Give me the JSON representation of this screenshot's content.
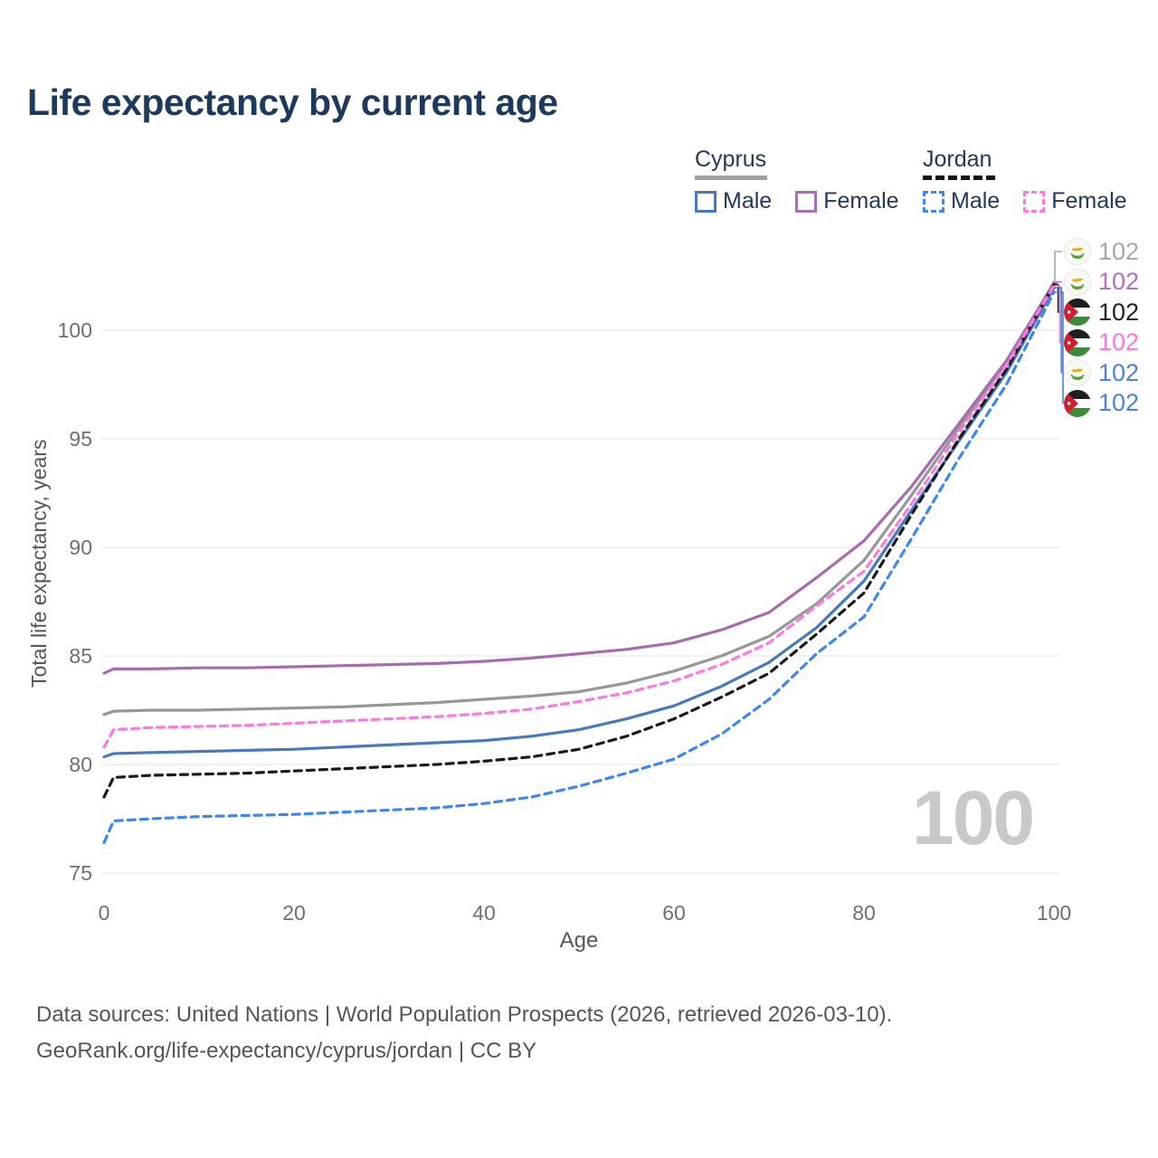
{
  "title": "Life expectancy by current age",
  "legend": {
    "groups": [
      {
        "label": "Cyprus",
        "underline_style": "solid",
        "underline_color": "#a0a0a0",
        "items": [
          {
            "label": "Male",
            "color": "#4878bd",
            "dash": false
          },
          {
            "label": "Female",
            "color": "#a96fb0",
            "dash": false
          }
        ]
      },
      {
        "label": "Jordan",
        "underline_style": "dashed",
        "underline_color": "#141414",
        "items": [
          {
            "label": "Male",
            "color": "#3f87f0",
            "dash": true
          },
          {
            "label": "Female",
            "color": "#fc7ade",
            "dash": true
          }
        ]
      }
    ]
  },
  "axes": {
    "x": {
      "label": "Age",
      "ticks": [
        0,
        20,
        40,
        60,
        80,
        100
      ]
    },
    "y": {
      "label": "Total life expectancy, years",
      "ticks": [
        75,
        80,
        85,
        90,
        95,
        100
      ]
    }
  },
  "chart_data": {
    "type": "line",
    "title": "Life expectancy by current age",
    "xlabel": "Age",
    "ylabel": "Total life expectancy, years",
    "xlim": [
      0,
      100
    ],
    "ylim": [
      75,
      100
    ],
    "grid": "horizontal-only",
    "x": [
      0,
      1,
      5,
      10,
      15,
      20,
      25,
      30,
      35,
      40,
      45,
      50,
      55,
      60,
      65,
      70,
      75,
      80,
      85,
      90,
      95,
      100
    ],
    "series": [
      {
        "id": "cyprus-total",
        "name": "Cyprus",
        "color": "#979797",
        "dash": false,
        "values": [
          82.3,
          82.45,
          82.5,
          82.5,
          82.55,
          82.6,
          82.65,
          82.75,
          82.85,
          83.0,
          83.15,
          83.35,
          83.75,
          84.3,
          85.0,
          85.9,
          87.4,
          89.4,
          92.4,
          95.5,
          98.5,
          102.2
        ]
      },
      {
        "id": "cyprus-female",
        "name": "Cyprus Female",
        "color": "#a76cae",
        "dash": false,
        "values": [
          84.2,
          84.4,
          84.4,
          84.45,
          84.45,
          84.5,
          84.55,
          84.6,
          84.65,
          84.75,
          84.9,
          85.1,
          85.3,
          85.6,
          86.2,
          87.0,
          88.6,
          90.3,
          92.8,
          95.7,
          98.6,
          102.15
        ]
      },
      {
        "id": "cyprus-male",
        "name": "Cyprus Male",
        "color": "#4878bd",
        "dash": false,
        "values": [
          80.35,
          80.5,
          80.55,
          80.6,
          80.65,
          80.7,
          80.8,
          80.9,
          81.0,
          81.1,
          81.3,
          81.6,
          82.1,
          82.7,
          83.6,
          84.7,
          86.3,
          88.45,
          91.7,
          94.9,
          98.05,
          101.95
        ]
      },
      {
        "id": "jordan-total",
        "name": "Jordan",
        "color": "#1a1a1a",
        "dash": true,
        "values": [
          78.5,
          79.4,
          79.5,
          79.55,
          79.6,
          79.7,
          79.8,
          79.9,
          80.0,
          80.15,
          80.35,
          80.7,
          81.3,
          82.1,
          83.1,
          84.2,
          86.0,
          87.9,
          91.5,
          95.0,
          98.2,
          102.1
        ]
      },
      {
        "id": "jordan-female",
        "name": "Jordan Female",
        "color": "#fc7ade",
        "dash": true,
        "values": [
          80.8,
          81.6,
          81.7,
          81.75,
          81.8,
          81.9,
          82.0,
          82.1,
          82.2,
          82.35,
          82.55,
          82.9,
          83.3,
          83.85,
          84.6,
          85.6,
          87.3,
          88.9,
          92.0,
          95.3,
          98.4,
          102.05
        ]
      },
      {
        "id": "jordan-male",
        "name": "Jordan Male",
        "color": "#3f87f0",
        "dash": true,
        "values": [
          76.4,
          77.4,
          77.5,
          77.6,
          77.65,
          77.7,
          77.8,
          77.9,
          78.0,
          78.2,
          78.5,
          79.0,
          79.6,
          80.25,
          81.4,
          83.0,
          85.1,
          86.8,
          90.4,
          94.1,
          97.5,
          101.75
        ]
      }
    ]
  },
  "endpoint_labels": [
    {
      "series_id": "cyprus-total",
      "icon": "cyprus-flag-icon",
      "value": "102",
      "color": "#a8a8a8"
    },
    {
      "series_id": "cyprus-female",
      "icon": "cyprus-flag-icon",
      "value": "102",
      "color": "#b470b8"
    },
    {
      "series_id": "jordan-total",
      "icon": "jordan-flag-icon",
      "value": "102",
      "color": "#1f1f1f"
    },
    {
      "series_id": "jordan-female",
      "icon": "jordan-flag-icon",
      "value": "102",
      "color": "#ff77dd"
    },
    {
      "series_id": "cyprus-male",
      "icon": "cyprus-flag-icon",
      "value": "102",
      "color": "#4d82d6"
    },
    {
      "series_id": "jordan-male",
      "icon": "jordan-flag-icon",
      "value": "102",
      "color": "#4d82d6"
    }
  ],
  "watermark": "100",
  "footer": {
    "line1": "Data sources: United Nations | World Population Prospects (2026, retrieved 2026-03-10).",
    "line2": "GeoRank.org/life-expectancy/cyprus/jordan | CC BY"
  },
  "colors": {
    "title": "#1d3a5c",
    "grid": "#e9e9e9",
    "tick_text": "#6f6f6f",
    "watermark": "#c9c9c9"
  }
}
